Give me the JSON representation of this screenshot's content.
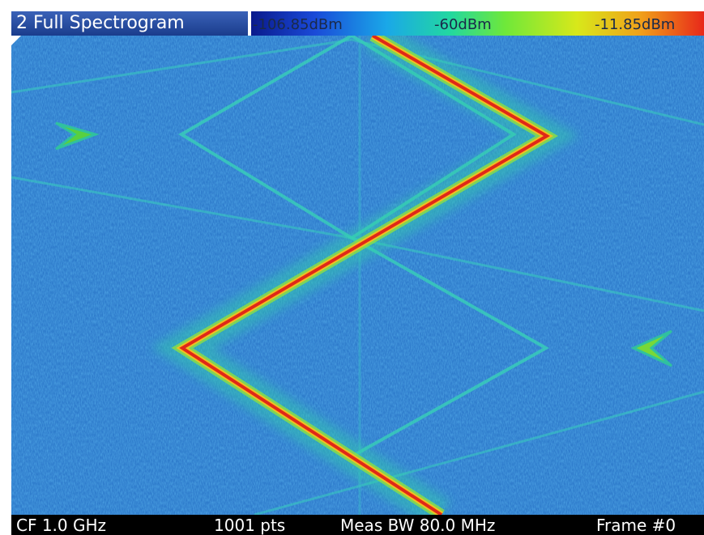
{
  "header": {
    "title": "2 Full Spectrogram",
    "scale_min": "-106.85dBm",
    "scale_mid": "-60dBm",
    "scale_max": "-11.85dBm"
  },
  "footer": {
    "center_frequency": "CF 1.0 GHz",
    "points": "1001 pts",
    "meas_bw": "Meas BW 80.0 MHz",
    "frame": "Frame #0"
  }
}
